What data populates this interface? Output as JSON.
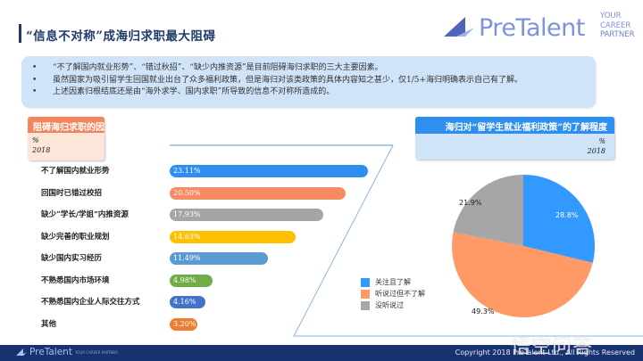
{
  "header": {
    "title": "“信息不对称”成海归求职最大阻碍",
    "logo": {
      "brand": "PreTalent",
      "tagline": [
        "YOUR",
        "CAREER",
        "PARTNER"
      ]
    }
  },
  "summary": {
    "bullets": [
      "“不了解国内就业形势”、“错过秋招”、“缺少内推资源”是目前阻碍海归求职的三大主要因素。",
      "虽然国家为吸引留学生回国就业出台了众多福利政策，但是海归对该类政策的具体内容知之甚少，仅1/5+海归明确表示自己有了解。",
      "上述因素归根结底还是由“海外求学、国内求职”所导致的信息不对称所造成的。"
    ]
  },
  "left_panel": {
    "title": "阻碍海归求职的因素",
    "unit": "%",
    "year": "2018"
  },
  "right_panel": {
    "title": "海归对“留学生就业福利政策”的了解程度",
    "unit": "%",
    "year": "2018"
  },
  "chart_data": [
    {
      "type": "bar",
      "orientation": "horizontal",
      "title": "阻碍海归求职的因素",
      "subtitle": "% 2018",
      "categories": [
        "不了解国内就业形势",
        "回国时已错过校招",
        "缺少“学长/学姐”内推资源",
        "缺少完善的职业规划",
        "缺少国内实习经历",
        "不熟悉国内市场环境",
        "不熟悉国内企业人际交往方式",
        "其他"
      ],
      "values": [
        23.11,
        20.5,
        17.93,
        14.63,
        11.49,
        4.98,
        4.16,
        3.2
      ],
      "labels": [
        "23.11%",
        "20.50%",
        "17.93%",
        "14.63%",
        "11.49%",
        "4.98%",
        "4.16%",
        "3.20%"
      ],
      "colors": [
        "#2f8ff0",
        "#f98b62",
        "#a5a5a5",
        "#ffc000",
        "#5b9bd5",
        "#70ad47",
        "#4472c4",
        "#ed7d31"
      ],
      "xlabel": "",
      "ylabel": "",
      "grid": false
    },
    {
      "type": "pie",
      "title": "海归对“留学生就业福利政策”的了解程度",
      "subtitle": "% 2018",
      "categories": [
        "关注且了解",
        "听说过但不了解",
        "没听说过"
      ],
      "values": [
        28.8,
        49.3,
        21.9
      ],
      "labels": [
        "28.8%",
        "49.3%",
        "21.9%"
      ],
      "colors": [
        "#3399ff",
        "#ff9966",
        "#a6a6a6"
      ],
      "legend_position": "left-bottom"
    }
  ],
  "footer": {
    "logo": "PreTalent",
    "logo_small": "YOUR CAREER PARTNER",
    "copyright": "Copyright 2018 PreTalent Ltd., All Rights Reserved",
    "watermark": "悟空问答"
  }
}
